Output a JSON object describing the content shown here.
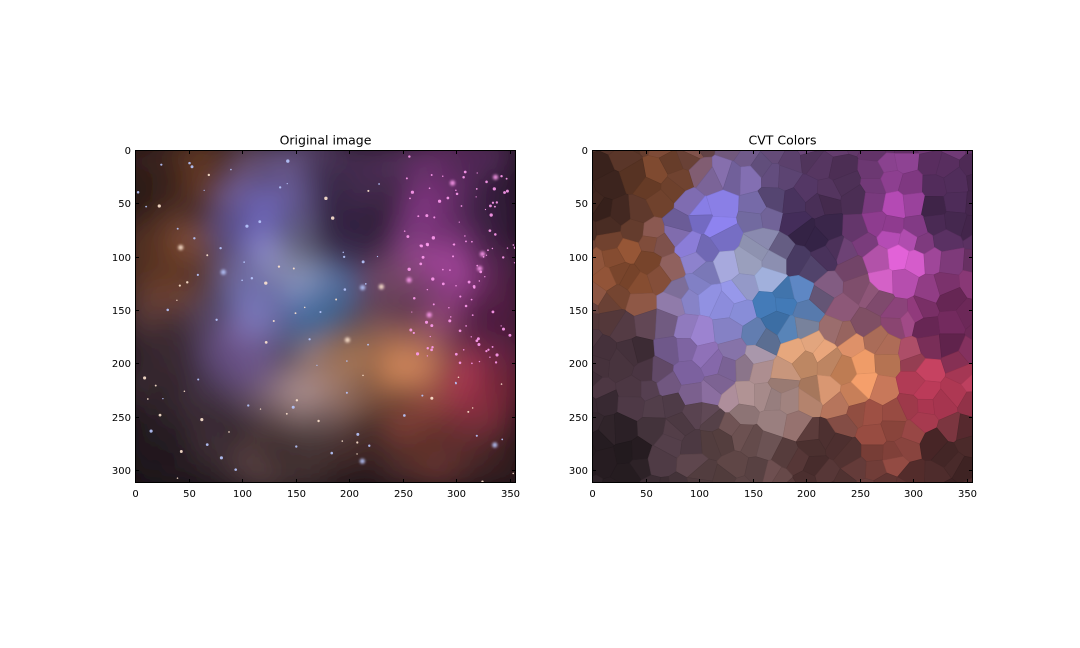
{
  "chart_data": [
    {
      "type": "image",
      "title": "Original image",
      "xlabel": "",
      "ylabel": "",
      "xlim": [
        0,
        356
      ],
      "ylim": [
        312,
        0
      ],
      "xticks": [
        0,
        50,
        100,
        150,
        200,
        250,
        300,
        350
      ],
      "yticks": [
        0,
        50,
        100,
        150,
        200,
        250,
        300
      ],
      "content": "nebula-photo",
      "dominant_colors": [
        "#1a1016",
        "#8a4e2c",
        "#9a8ae6",
        "#c23ab8",
        "#2a3a66",
        "#d98a4a",
        "#3a78c0"
      ]
    },
    {
      "type": "image",
      "title": "CVT Colors",
      "xlabel": "",
      "ylabel": "",
      "xlim": [
        0,
        356
      ],
      "ylim": [
        312,
        0
      ],
      "xticks": [
        0,
        50,
        100,
        150,
        200,
        250,
        300,
        350
      ],
      "yticks": [
        0,
        50,
        100,
        150,
        200,
        250,
        300
      ],
      "content": "voronoi-color-cells",
      "dominant_colors": [
        "#3a2a22",
        "#7a4a34",
        "#8a86d8",
        "#a24a9c",
        "#3a3252",
        "#d8a080",
        "#4a80b8"
      ]
    }
  ]
}
